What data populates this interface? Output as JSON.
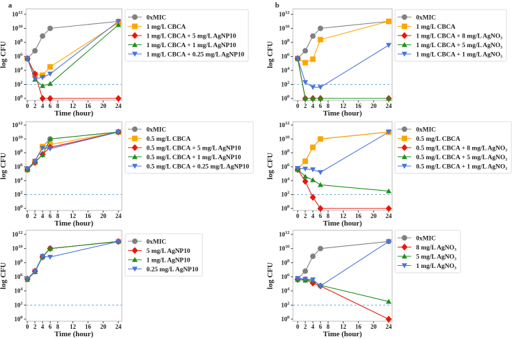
{
  "colors": {
    "0xMIC": "#808080",
    "orange": "#ffa500",
    "red": "#e8170c",
    "green": "#1f8f1f",
    "blue": "#4a72e0",
    "threshold": "#6fa8d8"
  },
  "chart_data": [
    {
      "panel_label": "a",
      "type": "line",
      "xlabel": "Time (hour)",
      "ylabel": "log CFU",
      "yscale": "log",
      "ylim_exp": [
        0,
        12
      ],
      "xlim": [
        0,
        24
      ],
      "x": [
        0,
        2,
        4,
        6,
        24
      ],
      "x_ticks": [
        0,
        2,
        4,
        6,
        8,
        12,
        16,
        20,
        24
      ],
      "y_tick_exponents": [
        0,
        2,
        4,
        6,
        8,
        10,
        12
      ],
      "threshold_exp": 2,
      "legend": "right",
      "series": [
        {
          "name": "0xMIC",
          "color": "#808080",
          "marker": "circle",
          "log10_values": [
            5.7,
            6.8,
            8.9,
            10,
            11
          ]
        },
        {
          "name": "1 mg/L CBCA",
          "color": "#ffa500",
          "marker": "square",
          "log10_values": [
            5.7,
            3.4,
            3.3,
            4.5,
            10.8
          ]
        },
        {
          "name": "1 mg/L CBCA + 5 mg/L AgNP10",
          "color": "#e8170c",
          "marker": "diamond",
          "log10_values": [
            5.7,
            3.5,
            0,
            0,
            0
          ]
        },
        {
          "name": "1 mg/L CBCA + 1 mg/L AgNP10",
          "color": "#1f8f1f",
          "marker": "triangle-up",
          "log10_values": [
            5.7,
            2.7,
            1.8,
            2.1,
            10.5
          ]
        },
        {
          "name": "1 mg/L CBCA + 0.25 mg/L AgNP10",
          "color": "#4a72e0",
          "marker": "triangle-down",
          "log10_values": [
            5.7,
            2.8,
            3.0,
            3.5,
            11
          ]
        }
      ]
    },
    {
      "panel_label": "b",
      "type": "line",
      "xlabel": "Time (hour)",
      "ylabel": "log CFU",
      "yscale": "log",
      "ylim_exp": [
        0,
        12
      ],
      "xlim": [
        0,
        24
      ],
      "x": [
        0,
        2,
        4,
        6,
        24
      ],
      "x_ticks": [
        0,
        2,
        4,
        6,
        8,
        12,
        16,
        20,
        24
      ],
      "y_tick_exponents": [
        0,
        2,
        4,
        6,
        8,
        10,
        12
      ],
      "threshold_exp": 2,
      "legend": "right",
      "series": [
        {
          "name": "0xMIC",
          "color": "#808080",
          "marker": "circle",
          "log10_values": [
            5.7,
            6.8,
            8.9,
            10,
            11
          ]
        },
        {
          "name": "1 mg/L CBCA",
          "color": "#ffa500",
          "marker": "square",
          "log10_values": [
            5.7,
            5.1,
            5.6,
            8.4,
            11
          ]
        },
        {
          "name": "1 mg/L CBCA + 8 mg/L AgNO₃",
          "color": "#e8170c",
          "marker": "diamond",
          "log10_values": [
            5.7,
            0,
            0,
            0,
            0
          ]
        },
        {
          "name": "1 mg/L CBCA + 5 mg/L AgNO₃",
          "color": "#1f8f1f",
          "marker": "triangle-up",
          "log10_values": [
            5.7,
            0,
            0,
            0,
            0
          ]
        },
        {
          "name": "1 mg/L CBCA + 1 mg/L AgNO₃",
          "color": "#4a72e0",
          "marker": "triangle-down",
          "log10_values": [
            5.7,
            2.3,
            1.6,
            1.6,
            7.6
          ]
        }
      ]
    },
    {
      "panel_label": "",
      "type": "line",
      "xlabel": "Time (hour)",
      "ylabel": "log CFU",
      "yscale": "log",
      "ylim_exp": [
        0,
        12
      ],
      "xlim": [
        0,
        24
      ],
      "x": [
        0,
        2,
        4,
        6,
        24
      ],
      "x_ticks": [
        0,
        2,
        4,
        6,
        8,
        12,
        16,
        20,
        24
      ],
      "y_tick_exponents": [
        0,
        2,
        4,
        6,
        8,
        10,
        12
      ],
      "threshold_exp": 2,
      "legend": "right",
      "series": [
        {
          "name": "0xMIC",
          "color": "#808080",
          "marker": "circle",
          "log10_values": [
            5.7,
            6.8,
            8.9,
            10,
            11
          ]
        },
        {
          "name": "0.5 mg/L CBCA",
          "color": "#ffa500",
          "marker": "square",
          "log10_values": [
            5.6,
            6.7,
            8.9,
            9.2,
            11
          ]
        },
        {
          "name": "0.5 mg/L CBCA + 5 mg/L AgNP10",
          "color": "#e8170c",
          "marker": "diamond",
          "log10_values": [
            5.6,
            6.6,
            7.8,
            8.8,
            11
          ]
        },
        {
          "name": "0.5 mg/L CBCA + 1 mg/L AgNP10",
          "color": "#1f8f1f",
          "marker": "triangle-up",
          "log10_values": [
            5.6,
            6.7,
            7.7,
            10,
            11
          ]
        },
        {
          "name": "0.5 mg/L CBCA + 0.25 mg/L AgNP10",
          "color": "#4a72e0",
          "marker": "triangle-down",
          "log10_values": [
            5.7,
            6.8,
            8.7,
            8.6,
            11
          ]
        }
      ]
    },
    {
      "panel_label": "",
      "type": "line",
      "xlabel": "Time (hour)",
      "ylabel": "log CFU",
      "yscale": "log",
      "ylim_exp": [
        0,
        12
      ],
      "xlim": [
        0,
        24
      ],
      "x": [
        0,
        2,
        4,
        6,
        24
      ],
      "x_ticks": [
        0,
        2,
        4,
        6,
        8,
        12,
        16,
        20,
        24
      ],
      "y_tick_exponents": [
        0,
        2,
        4,
        6,
        8,
        10,
        12
      ],
      "threshold_exp": 2,
      "legend": "right",
      "series": [
        {
          "name": "0xMIC",
          "color": "#808080",
          "marker": "circle",
          "log10_values": [
            5.7,
            6.8,
            8.8,
            10,
            11
          ]
        },
        {
          "name": "0.5 mg/L CBCA",
          "color": "#ffa500",
          "marker": "square",
          "log10_values": [
            5.7,
            6.8,
            8.8,
            10,
            11
          ]
        },
        {
          "name": "0.5 mg/L CBCA + 8 mg/L AgNO₃",
          "color": "#e8170c",
          "marker": "diamond",
          "log10_values": [
            5.6,
            3.9,
            1.6,
            0,
            0
          ]
        },
        {
          "name": "0.5 mg/L CBCA + 5 mg/L AgNO₃",
          "color": "#1f8f1f",
          "marker": "triangle-up",
          "log10_values": [
            5.6,
            4.6,
            4.1,
            3.4,
            2.5
          ]
        },
        {
          "name": "0.5 mg/L CBCA + 1 mg/L AgNO₃",
          "color": "#4a72e0",
          "marker": "triangle-down",
          "log10_values": [
            5.8,
            5.7,
            5.6,
            5.2,
            11
          ]
        }
      ]
    },
    {
      "panel_label": "",
      "type": "line",
      "xlabel": "Time (hour)",
      "ylabel": "log CFU",
      "yscale": "log",
      "ylim_exp": [
        0,
        12
      ],
      "xlim": [
        0,
        24
      ],
      "x": [
        0,
        2,
        4,
        6,
        24
      ],
      "x_ticks": [
        0,
        2,
        4,
        6,
        8,
        12,
        16,
        20,
        24
      ],
      "y_tick_exponents": [
        0,
        2,
        4,
        6,
        8,
        10,
        12
      ],
      "threshold_exp": 2,
      "legend": "right",
      "series": [
        {
          "name": "0xMIC",
          "color": "#808080",
          "marker": "circle",
          "log10_values": [
            5.7,
            6.8,
            8.9,
            10,
            11
          ]
        },
        {
          "name": "5 mg/L AgNP10",
          "color": "#e8170c",
          "marker": "diamond",
          "log10_values": [
            5.7,
            6.8,
            8.8,
            10,
            11
          ]
        },
        {
          "name": "1 mg/L AgNP10",
          "color": "#1f8f1f",
          "marker": "triangle-up",
          "log10_values": [
            5.6,
            6.7,
            8.8,
            10,
            11
          ]
        },
        {
          "name": "0.25 mg/L AgNP10",
          "color": "#4a72e0",
          "marker": "triangle-down",
          "log10_values": [
            5.7,
            6.8,
            8.9,
            8.8,
            11
          ]
        }
      ]
    },
    {
      "panel_label": "",
      "type": "line",
      "xlabel": "Time (hour)",
      "ylabel": "log CFU",
      "yscale": "log",
      "ylim_exp": [
        0,
        12
      ],
      "xlim": [
        0,
        24
      ],
      "x": [
        0,
        2,
        4,
        6,
        24
      ],
      "x_ticks": [
        0,
        2,
        4,
        6,
        8,
        12,
        16,
        20,
        24
      ],
      "y_tick_exponents": [
        0,
        2,
        4,
        6,
        8,
        10,
        12
      ],
      "threshold_exp": 2,
      "legend": "right",
      "series": [
        {
          "name": "0xMIC",
          "color": "#808080",
          "marker": "circle",
          "log10_values": [
            5.7,
            6.8,
            8.9,
            10,
            11
          ]
        },
        {
          "name": "8 mg/L AgNO₃",
          "color": "#e8170c",
          "marker": "diamond",
          "log10_values": [
            5.6,
            5.6,
            5.1,
            4.7,
            0
          ]
        },
        {
          "name": "5 mg/L AgNO₃",
          "color": "#1f8f1f",
          "marker": "triangle-up",
          "log10_values": [
            5.6,
            5.5,
            5.5,
            4.8,
            2.5
          ]
        },
        {
          "name": "1 mg/L AgNO₃",
          "color": "#4a72e0",
          "marker": "triangle-down",
          "log10_values": [
            5.8,
            5.7,
            5.6,
            4.7,
            11
          ]
        }
      ]
    }
  ]
}
